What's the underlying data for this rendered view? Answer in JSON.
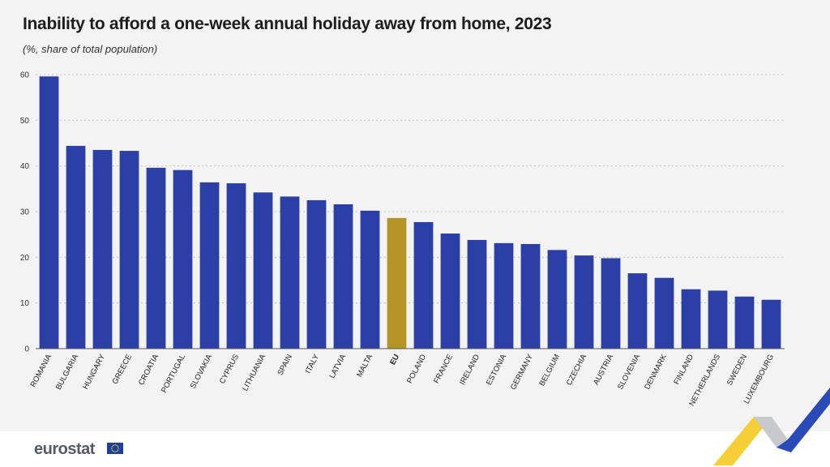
{
  "chart_data": {
    "type": "bar",
    "title": "Inability to afford a one-week annual holiday away from home, 2023",
    "subtitle": "(%, share of total population)",
    "categories": [
      "ROMANIA",
      "BULGARIA",
      "HUNGARY",
      "GREECE",
      "CROATIA",
      "PORTUGAL",
      "SLOVAKIA",
      "CYPRUS",
      "LITHUANIA",
      "SPAIN",
      "ITALY",
      "LATVIA",
      "MALTA",
      "EU",
      "POLAND",
      "FRANCE",
      "IRELAND",
      "ESTONIA",
      "GERMANY",
      "BELGIUM",
      "CZECHIA",
      "AUSTRIA",
      "SLOVENIA",
      "DENMARK",
      "FINLAND",
      "NETHERLANDS",
      "SWEDEN",
      "LUXEMBOURG"
    ],
    "values": [
      59.6,
      44.4,
      43.5,
      43.3,
      39.6,
      39.1,
      36.4,
      36.2,
      34.2,
      33.3,
      32.5,
      31.6,
      30.2,
      28.6,
      27.7,
      25.2,
      23.8,
      23.1,
      22.9,
      21.6,
      20.4,
      19.8,
      16.5,
      15.5,
      13.0,
      12.7,
      11.4,
      10.7
    ],
    "highlight": "EU",
    "ylim": [
      0,
      60
    ],
    "yticks": [
      0,
      10,
      20,
      30,
      40,
      50,
      60
    ],
    "grid": true,
    "legend": "none",
    "colors": {
      "bar": "#2b3fa6",
      "highlight": "#b69528"
    }
  },
  "footer": {
    "logo_text": "eurostat"
  }
}
